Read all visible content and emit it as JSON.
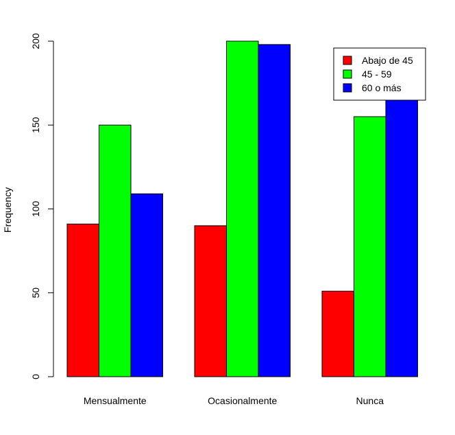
{
  "chart_data": {
    "type": "bar",
    "grouped": true,
    "categories": [
      "Mensualmente",
      "Ocasionalmente",
      "Nunca"
    ],
    "series": [
      {
        "name": "Abajo de 45",
        "color": "#ff0000",
        "values": [
          91,
          90,
          51
        ]
      },
      {
        "name": "45 - 59",
        "color": "#00ff00",
        "values": [
          150,
          200,
          155
        ]
      },
      {
        "name": "60 o más",
        "color": "#0000ff",
        "values": [
          109,
          198,
          172
        ]
      }
    ],
    "title": "",
    "xlabel": "",
    "ylabel": "Frequency",
    "ylim": [
      0,
      200
    ],
    "yticks": [
      0,
      50,
      100,
      150,
      200
    ],
    "grid": false,
    "legend_position": "top-right"
  }
}
